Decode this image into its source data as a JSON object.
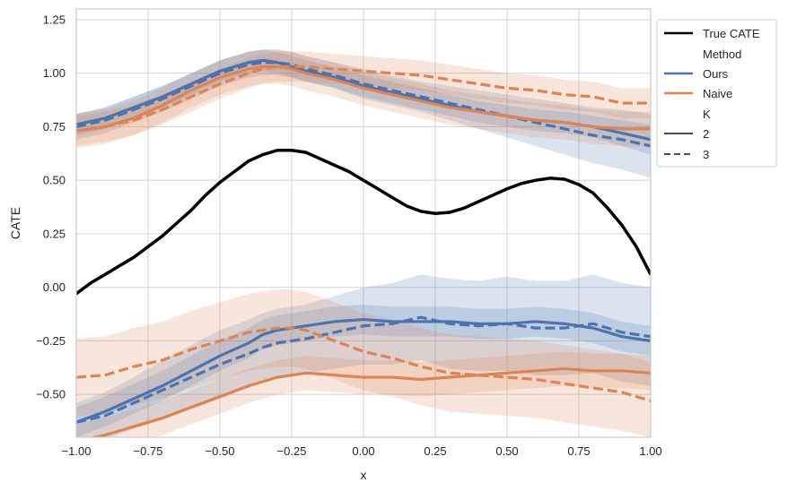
{
  "chart_data": {
    "type": "line",
    "title": "",
    "xlabel": "x",
    "ylabel": "CATE",
    "xlim": [
      -1.0,
      1.0
    ],
    "ylim": [
      -0.7,
      1.3
    ],
    "grid": true,
    "legend_position": "outside-top-right",
    "x_ticks": [
      "−1.00",
      "−0.75",
      "−0.50",
      "−0.25",
      "0.00",
      "0.25",
      "0.50",
      "0.75",
      "1.00"
    ],
    "y_ticks": [
      "−0.50",
      "−0.25",
      "0.00",
      "0.25",
      "0.50",
      "0.75",
      "1.00",
      "1.25"
    ],
    "legend": {
      "true_cate": "True CATE",
      "method_header": "Method",
      "ours": "Ours",
      "naive": "Naive",
      "k_header": "K",
      "k2": "2",
      "k3": "3"
    },
    "colors": {
      "true": "#000000",
      "ours": "#4C72B0",
      "naive": "#DD8452"
    },
    "x": [
      -1.0,
      -0.9,
      -0.8,
      -0.7,
      -0.6,
      -0.5,
      -0.4,
      -0.35,
      -0.3,
      -0.25,
      -0.2,
      -0.1,
      0.0,
      0.1,
      0.2,
      0.3,
      0.4,
      0.5,
      0.6,
      0.7,
      0.8,
      0.9,
      1.0
    ],
    "series": [
      {
        "name": "True CATE",
        "key": "true",
        "dash": "solid",
        "x": [
          -1.0,
          -0.95,
          -0.9,
          -0.85,
          -0.8,
          -0.75,
          -0.7,
          -0.65,
          -0.6,
          -0.55,
          -0.5,
          -0.45,
          -0.4,
          -0.35,
          -0.3,
          -0.25,
          -0.2,
          -0.15,
          -0.1,
          -0.05,
          0.0,
          0.05,
          0.1,
          0.15,
          0.2,
          0.25,
          0.3,
          0.35,
          0.4,
          0.45,
          0.5,
          0.55,
          0.6,
          0.65,
          0.7,
          0.75,
          0.8,
          0.85,
          0.9,
          0.95,
          1.0
        ],
        "values": [
          -0.03,
          0.02,
          0.06,
          0.1,
          0.14,
          0.19,
          0.24,
          0.3,
          0.36,
          0.43,
          0.49,
          0.54,
          0.59,
          0.62,
          0.64,
          0.64,
          0.63,
          0.6,
          0.57,
          0.54,
          0.5,
          0.46,
          0.42,
          0.38,
          0.355,
          0.345,
          0.35,
          0.37,
          0.4,
          0.43,
          0.46,
          0.485,
          0.5,
          0.51,
          0.505,
          0.48,
          0.44,
          0.37,
          0.29,
          0.19,
          0.06
        ]
      },
      {
        "name": "Ours K=2 (upper)",
        "key": "ours",
        "dash": "solid",
        "values": [
          0.76,
          0.79,
          0.84,
          0.89,
          0.95,
          1.01,
          1.05,
          1.06,
          1.05,
          1.03,
          1.01,
          0.98,
          0.94,
          0.91,
          0.88,
          0.85,
          0.82,
          0.8,
          0.78,
          0.77,
          0.75,
          0.72,
          0.69
        ],
        "band": [
          [
            0.71,
            0.81
          ],
          [
            0.74,
            0.84
          ],
          [
            0.79,
            0.89
          ],
          [
            0.84,
            0.94
          ],
          [
            0.9,
            1.0
          ],
          [
            0.96,
            1.06
          ],
          [
            1.0,
            1.1
          ],
          [
            1.01,
            1.11
          ],
          [
            1.0,
            1.1
          ],
          [
            0.98,
            1.08
          ],
          [
            0.96,
            1.06
          ],
          [
            0.93,
            1.03
          ],
          [
            0.89,
            0.99
          ],
          [
            0.86,
            0.96
          ],
          [
            0.83,
            0.93
          ],
          [
            0.8,
            0.9
          ],
          [
            0.77,
            0.87
          ],
          [
            0.75,
            0.85
          ],
          [
            0.73,
            0.83
          ],
          [
            0.72,
            0.82
          ],
          [
            0.7,
            0.8
          ],
          [
            0.66,
            0.78
          ],
          [
            0.62,
            0.76
          ]
        ]
      },
      {
        "name": "Ours K=3 (upper)",
        "key": "ours",
        "dash": "dashed",
        "values": [
          0.75,
          0.78,
          0.83,
          0.88,
          0.94,
          1.0,
          1.04,
          1.05,
          1.05,
          1.04,
          1.02,
          0.99,
          0.95,
          0.92,
          0.89,
          0.86,
          0.83,
          0.8,
          0.77,
          0.74,
          0.71,
          0.69,
          0.66
        ],
        "band": [
          [
            0.69,
            0.81
          ],
          [
            0.72,
            0.84
          ],
          [
            0.77,
            0.89
          ],
          [
            0.82,
            0.94
          ],
          [
            0.88,
            1.0
          ],
          [
            0.94,
            1.06
          ],
          [
            0.98,
            1.1
          ],
          [
            0.99,
            1.11
          ],
          [
            0.99,
            1.11
          ],
          [
            0.98,
            1.1
          ],
          [
            0.96,
            1.08
          ],
          [
            0.93,
            1.05
          ],
          [
            0.88,
            1.02
          ],
          [
            0.85,
            0.99
          ],
          [
            0.82,
            0.96
          ],
          [
            0.78,
            0.94
          ],
          [
            0.74,
            0.92
          ],
          [
            0.7,
            0.9
          ],
          [
            0.66,
            0.88
          ],
          [
            0.62,
            0.86
          ],
          [
            0.58,
            0.84
          ],
          [
            0.55,
            0.83
          ],
          [
            0.51,
            0.81
          ]
        ]
      },
      {
        "name": "Naive K=2 (upper)",
        "key": "naive",
        "dash": "solid",
        "values": [
          0.73,
          0.75,
          0.79,
          0.85,
          0.92,
          0.98,
          1.02,
          1.03,
          1.03,
          1.02,
          1.0,
          0.97,
          0.93,
          0.9,
          0.87,
          0.84,
          0.82,
          0.8,
          0.78,
          0.77,
          0.75,
          0.74,
          0.74
        ],
        "band": [
          [
            0.65,
            0.81
          ],
          [
            0.67,
            0.83
          ],
          [
            0.71,
            0.87
          ],
          [
            0.77,
            0.93
          ],
          [
            0.84,
            1.0
          ],
          [
            0.9,
            1.06
          ],
          [
            0.94,
            1.1
          ],
          [
            0.95,
            1.11
          ],
          [
            0.95,
            1.11
          ],
          [
            0.94,
            1.1
          ],
          [
            0.92,
            1.08
          ],
          [
            0.89,
            1.05
          ],
          [
            0.85,
            1.01
          ],
          [
            0.82,
            0.98
          ],
          [
            0.79,
            0.95
          ],
          [
            0.76,
            0.92
          ],
          [
            0.74,
            0.9
          ],
          [
            0.72,
            0.88
          ],
          [
            0.7,
            0.86
          ],
          [
            0.69,
            0.85
          ],
          [
            0.67,
            0.83
          ],
          [
            0.66,
            0.82
          ],
          [
            0.66,
            0.82
          ]
        ]
      },
      {
        "name": "Naive K=3 (upper)",
        "key": "naive",
        "dash": "dashed",
        "values": [
          0.73,
          0.75,
          0.78,
          0.83,
          0.89,
          0.95,
          1.0,
          1.02,
          1.03,
          1.03,
          1.03,
          1.02,
          1.01,
          1.0,
          0.99,
          0.97,
          0.95,
          0.93,
          0.92,
          0.9,
          0.89,
          0.86,
          0.86
        ],
        "band": [
          [
            0.66,
            0.8
          ],
          [
            0.68,
            0.82
          ],
          [
            0.71,
            0.85
          ],
          [
            0.76,
            0.9
          ],
          [
            0.82,
            0.96
          ],
          [
            0.88,
            1.02
          ],
          [
            0.93,
            1.07
          ],
          [
            0.95,
            1.09
          ],
          [
            0.96,
            1.1
          ],
          [
            0.96,
            1.1
          ],
          [
            0.96,
            1.1
          ],
          [
            0.95,
            1.09
          ],
          [
            0.94,
            1.08
          ],
          [
            0.93,
            1.07
          ],
          [
            0.92,
            1.06
          ],
          [
            0.9,
            1.04
          ],
          [
            0.88,
            1.02
          ],
          [
            0.86,
            1.0
          ],
          [
            0.85,
            0.99
          ],
          [
            0.83,
            0.97
          ],
          [
            0.82,
            0.96
          ],
          [
            0.79,
            0.93
          ],
          [
            0.79,
            0.93
          ]
        ]
      },
      {
        "name": "Ours K=2 (lower)",
        "key": "ours",
        "dash": "solid",
        "values": [
          -0.63,
          -0.58,
          -0.52,
          -0.46,
          -0.39,
          -0.32,
          -0.26,
          -0.22,
          -0.2,
          -0.19,
          -0.18,
          -0.16,
          -0.15,
          -0.16,
          -0.16,
          -0.16,
          -0.17,
          -0.17,
          -0.16,
          -0.17,
          -0.19,
          -0.23,
          -0.25
        ],
        "band": [
          [
            -0.7,
            -0.56
          ],
          [
            -0.65,
            -0.51
          ],
          [
            -0.59,
            -0.45
          ],
          [
            -0.53,
            -0.39
          ],
          [
            -0.46,
            -0.32
          ],
          [
            -0.39,
            -0.25
          ],
          [
            -0.33,
            -0.19
          ],
          [
            -0.29,
            -0.15
          ],
          [
            -0.27,
            -0.13
          ],
          [
            -0.26,
            -0.12
          ],
          [
            -0.25,
            -0.11
          ],
          [
            -0.23,
            -0.09
          ],
          [
            -0.22,
            -0.08
          ],
          [
            -0.23,
            -0.09
          ],
          [
            -0.23,
            -0.09
          ],
          [
            -0.23,
            -0.09
          ],
          [
            -0.24,
            -0.1
          ],
          [
            -0.24,
            -0.1
          ],
          [
            -0.23,
            -0.09
          ],
          [
            -0.24,
            -0.1
          ],
          [
            -0.26,
            -0.12
          ],
          [
            -0.3,
            -0.16
          ],
          [
            -0.32,
            -0.18
          ]
        ]
      },
      {
        "name": "Ours K=3 (lower)",
        "key": "ours",
        "dash": "dashed",
        "values": [
          -0.63,
          -0.6,
          -0.54,
          -0.48,
          -0.42,
          -0.36,
          -0.31,
          -0.28,
          -0.26,
          -0.25,
          -0.24,
          -0.21,
          -0.18,
          -0.17,
          -0.14,
          -0.17,
          -0.18,
          -0.17,
          -0.19,
          -0.19,
          -0.17,
          -0.21,
          -0.23
        ],
        "band": [
          [
            -0.72,
            -0.54
          ],
          [
            -0.71,
            -0.49
          ],
          [
            -0.66,
            -0.42
          ],
          [
            -0.62,
            -0.34
          ],
          [
            -0.57,
            -0.27
          ],
          [
            -0.52,
            -0.2
          ],
          [
            -0.47,
            -0.15
          ],
          [
            -0.44,
            -0.12
          ],
          [
            -0.42,
            -0.1
          ],
          [
            -0.41,
            -0.09
          ],
          [
            -0.4,
            -0.08
          ],
          [
            -0.38,
            -0.04
          ],
          [
            -0.36,
            0.0
          ],
          [
            -0.36,
            0.02
          ],
          [
            -0.34,
            0.06
          ],
          [
            -0.38,
            0.04
          ],
          [
            -0.39,
            0.03
          ],
          [
            -0.39,
            0.05
          ],
          [
            -0.41,
            0.03
          ],
          [
            -0.41,
            0.03
          ],
          [
            -0.4,
            0.06
          ],
          [
            -0.44,
            0.02
          ],
          [
            -0.46,
            0.0
          ]
        ]
      },
      {
        "name": "Naive K=2 (lower)",
        "key": "naive",
        "dash": "solid",
        "values": [
          -0.72,
          -0.69,
          -0.65,
          -0.61,
          -0.56,
          -0.51,
          -0.46,
          -0.44,
          -0.42,
          -0.41,
          -0.4,
          -0.41,
          -0.42,
          -0.42,
          -0.43,
          -0.42,
          -0.41,
          -0.4,
          -0.39,
          -0.38,
          -0.39,
          -0.39,
          -0.4
        ],
        "band": [
          [
            -0.8,
            -0.64
          ],
          [
            -0.77,
            -0.61
          ],
          [
            -0.73,
            -0.57
          ],
          [
            -0.69,
            -0.53
          ],
          [
            -0.64,
            -0.48
          ],
          [
            -0.59,
            -0.43
          ],
          [
            -0.54,
            -0.38
          ],
          [
            -0.52,
            -0.36
          ],
          [
            -0.5,
            -0.34
          ],
          [
            -0.49,
            -0.33
          ],
          [
            -0.48,
            -0.32
          ],
          [
            -0.49,
            -0.33
          ],
          [
            -0.5,
            -0.34
          ],
          [
            -0.5,
            -0.34
          ],
          [
            -0.51,
            -0.35
          ],
          [
            -0.5,
            -0.34
          ],
          [
            -0.49,
            -0.33
          ],
          [
            -0.48,
            -0.32
          ],
          [
            -0.47,
            -0.31
          ],
          [
            -0.46,
            -0.3
          ],
          [
            -0.47,
            -0.31
          ],
          [
            -0.47,
            -0.31
          ],
          [
            -0.48,
            -0.32
          ]
        ]
      },
      {
        "name": "Naive K=3 (lower)",
        "key": "naive",
        "dash": "dashed",
        "values": [
          -0.42,
          -0.41,
          -0.37,
          -0.34,
          -0.29,
          -0.25,
          -0.21,
          -0.2,
          -0.19,
          -0.19,
          -0.2,
          -0.25,
          -0.3,
          -0.33,
          -0.37,
          -0.4,
          -0.41,
          -0.42,
          -0.43,
          -0.45,
          -0.47,
          -0.49,
          -0.53
        ],
        "band": [
          [
            -0.6,
            -0.24
          ],
          [
            -0.59,
            -0.23
          ],
          [
            -0.55,
            -0.19
          ],
          [
            -0.52,
            -0.16
          ],
          [
            -0.47,
            -0.11
          ],
          [
            -0.43,
            -0.07
          ],
          [
            -0.39,
            -0.03
          ],
          [
            -0.38,
            -0.02
          ],
          [
            -0.37,
            -0.01
          ],
          [
            -0.37,
            -0.01
          ],
          [
            -0.38,
            -0.02
          ],
          [
            -0.43,
            -0.07
          ],
          [
            -0.48,
            -0.12
          ],
          [
            -0.51,
            -0.15
          ],
          [
            -0.55,
            -0.19
          ],
          [
            -0.58,
            -0.22
          ],
          [
            -0.59,
            -0.23
          ],
          [
            -0.6,
            -0.24
          ],
          [
            -0.61,
            -0.25
          ],
          [
            -0.63,
            -0.27
          ],
          [
            -0.65,
            -0.29
          ],
          [
            -0.67,
            -0.31
          ],
          [
            -0.7,
            -0.35
          ]
        ]
      }
    ]
  }
}
